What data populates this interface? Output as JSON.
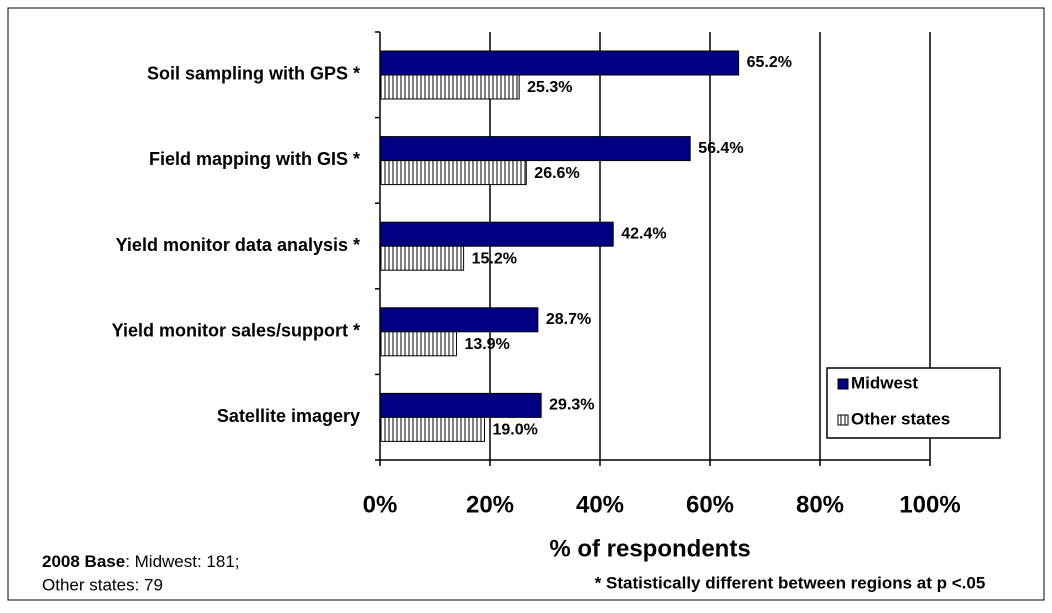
{
  "chart_data": {
    "type": "hbar",
    "categories": [
      "Soil sampling with GPS *",
      "Field mapping with GIS *",
      "Yield monitor data analysis *",
      "Yield monitor sales/support *",
      "Satellite imagery"
    ],
    "series": [
      {
        "name": "Midwest",
        "color": "#000080",
        "values": [
          65.2,
          56.4,
          42.4,
          28.7,
          29.3
        ],
        "value_labels": [
          "65.2%",
          "56.4%",
          "42.4%",
          "28.7%",
          "29.3%"
        ]
      },
      {
        "name": "Other states",
        "color": "striped",
        "values": [
          25.3,
          26.6,
          15.2,
          13.9,
          19.0
        ],
        "value_labels": [
          "25.3%",
          "26.6%",
          "15.2%",
          "13.9%",
          "19.0%"
        ]
      }
    ],
    "xlim": [
      0,
      100
    ],
    "xticks": [
      {
        "value": 0,
        "label": "0%"
      },
      {
        "value": 20,
        "label": "20%"
      },
      {
        "value": 40,
        "label": "40%"
      },
      {
        "value": 60,
        "label": "60%"
      },
      {
        "value": 80,
        "label": "80%"
      },
      {
        "value": 100,
        "label": "100%"
      }
    ],
    "grid": true,
    "legend": "lower right",
    "x_label": "% of respondents",
    "note": "* Statistically different between regions at p <.05",
    "base_label": "2008 Base",
    "base_text": ": Midwest: 181;",
    "base_text_2": "Other states: 79"
  }
}
